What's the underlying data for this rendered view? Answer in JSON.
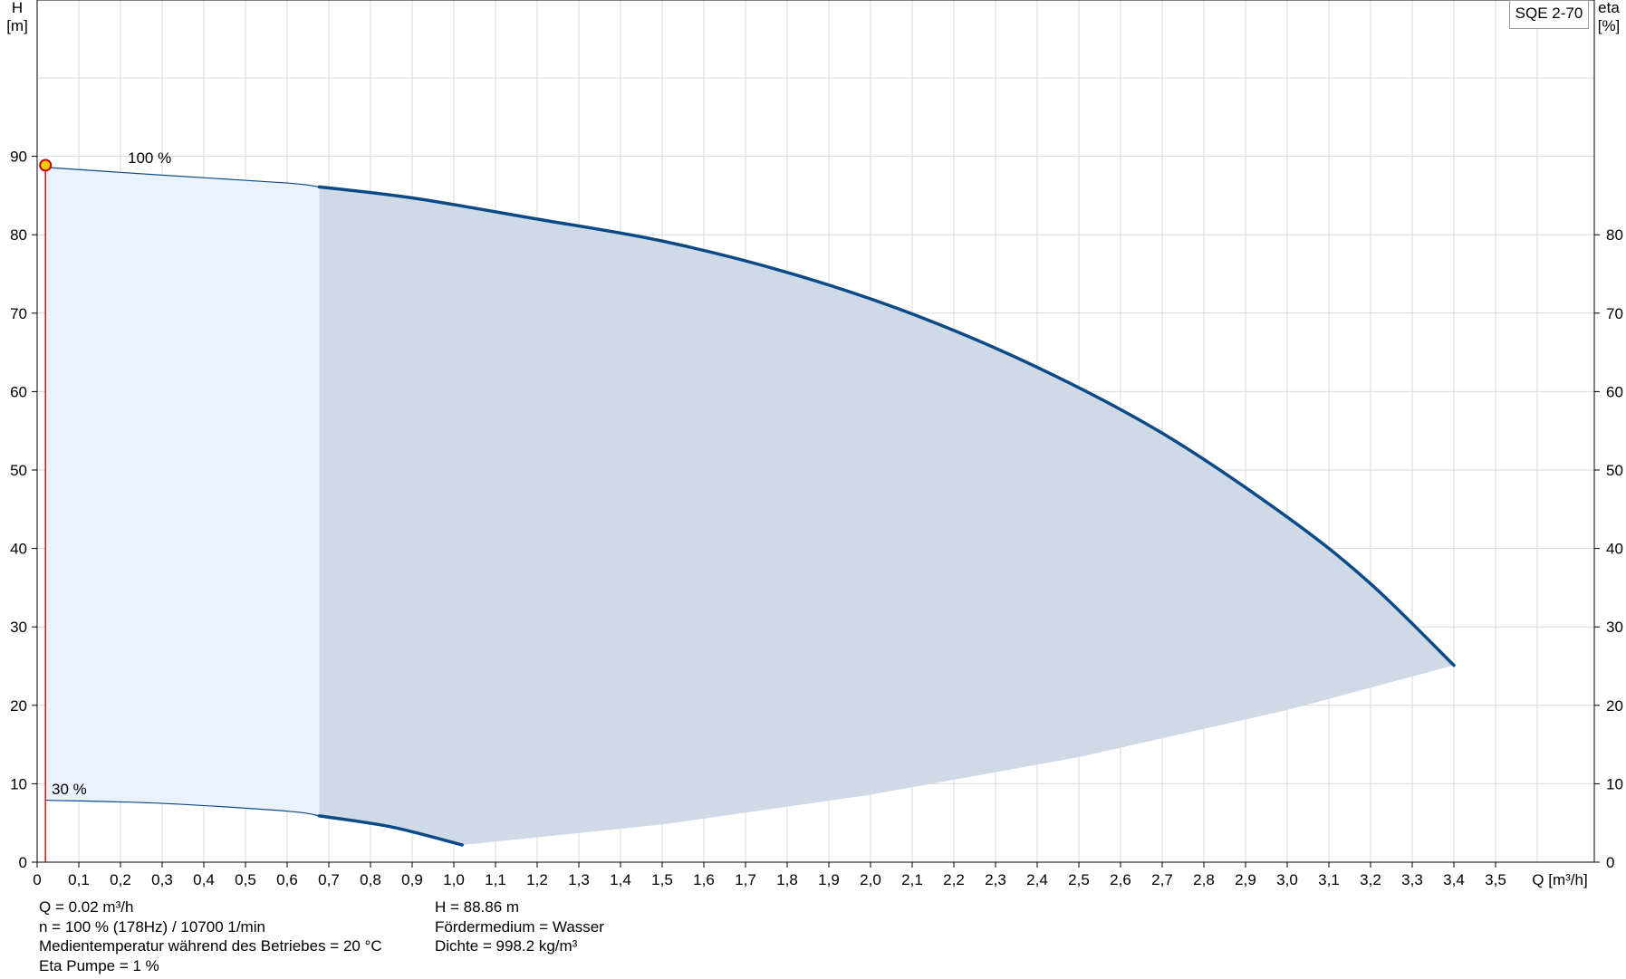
{
  "chart_data": {
    "type": "line",
    "legend_label": "SQE 2-70",
    "x_axis": {
      "unit_label": "Q [m³/h]",
      "range": [
        0,
        3.7
      ],
      "ticks": [
        "0",
        "0,1",
        "0,2",
        "0,3",
        "0,4",
        "0,5",
        "0,6",
        "0,7",
        "0,8",
        "0,9",
        "1,0",
        "1,1",
        "1,2",
        "1,3",
        "1,4",
        "1,5",
        "1,6",
        "1,7",
        "1,8",
        "1,9",
        "2,0",
        "2,1",
        "2,2",
        "2,3",
        "2,4",
        "2,5",
        "2,6",
        "2,7",
        "2,8",
        "2,9",
        "3,0",
        "3,1",
        "3,2",
        "3,3",
        "3,4",
        "3,5"
      ]
    },
    "y_left": {
      "label": "H",
      "unit": "[m]",
      "range": [
        0,
        100
      ],
      "ticks": [
        "0",
        "10",
        "20",
        "30",
        "40",
        "50",
        "60",
        "70",
        "80",
        "90"
      ]
    },
    "y_right": {
      "label": "eta",
      "unit": "[%]",
      "ticks": [
        "0",
        "10",
        "20",
        "30",
        "40",
        "50",
        "60",
        "70",
        "80"
      ]
    },
    "grid": true,
    "series": [
      {
        "name": "100 %",
        "x": [
          0.02,
          0.3,
          0.6,
          0.677,
          0.9,
          1.2,
          1.5,
          1.8,
          2.1,
          2.4,
          2.7,
          3.0,
          3.2,
          3.4
        ],
        "y": [
          88.6,
          87.6,
          86.6,
          86.1,
          84.7,
          82.0,
          79.2,
          75.2,
          69.9,
          63.1,
          54.7,
          44.0,
          35.5,
          25.1
        ],
        "color": "#0b4a87"
      },
      {
        "name": "30 %",
        "x": [
          0.02,
          0.3,
          0.6,
          0.677,
          0.85,
          1.02
        ],
        "y": [
          7.9,
          7.5,
          6.5,
          5.9,
          4.5,
          2.2
        ],
        "color": "#0b4a87"
      }
    ],
    "lower_envelope": {
      "x": [
        1.02,
        1.5,
        2.0,
        2.5,
        3.0,
        3.4
      ],
      "y": [
        2.2,
        4.8,
        8.6,
        13.4,
        19.4,
        25.1
      ]
    },
    "thin_region_limit_x": 0.677,
    "operating_point": {
      "x": 0.02,
      "y": 88.86,
      "marker_color": "#f0d000",
      "edge_color": "#cc0000"
    },
    "operating_line_color": "#e01010",
    "fill_color_light": "#eaf3fd",
    "fill_color_dark": "#cfdae6"
  },
  "info_left": [
    "Q = 0.02 m³/h",
    "n = 100 % (178Hz) / 10700 1/min",
    "Medientemperatur während des Betriebes = 20 °C",
    "Eta Pumpe = 1 %"
  ],
  "info_right": [
    "H = 88.86 m",
    "Fördermedium = Wasser",
    "Dichte = 998.2 kg/m³"
  ]
}
